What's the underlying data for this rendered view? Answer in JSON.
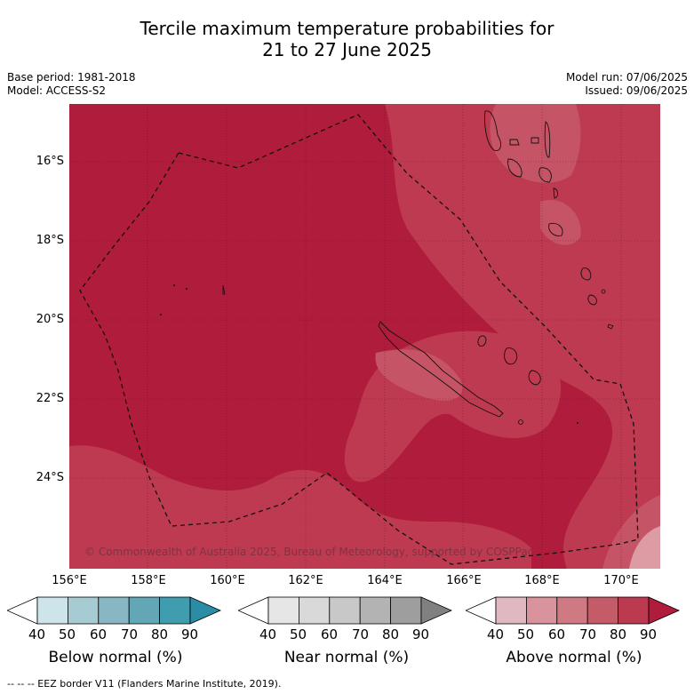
{
  "title_line1": "Tercile maximum temperature probabilities for",
  "title_line2": "21 to 27 June 2025",
  "meta_left": [
    "Base period: 1981-2018",
    "Model: ACCESS-S2"
  ],
  "meta_right": [
    "Model run: 07/06/2025",
    "Issued: 09/06/2025"
  ],
  "lat_labels": [
    "16°S",
    "18°S",
    "20°S",
    "22°S",
    "24°S"
  ],
  "lon_labels": [
    "156°E",
    "158°E",
    "160°E",
    "162°E",
    "164°E",
    "166°E",
    "168°E",
    "170°E"
  ],
  "copyright": "© Commonwealth of Australia 2025, Bureau of Meteorology, supported by COSPPac",
  "colorbars": [
    {
      "title": "Below normal (%)",
      "ticks": [
        "40",
        "50",
        "60",
        "70",
        "80",
        "90"
      ],
      "colors": [
        "#ffffff",
        "#cce4ea",
        "#a6cbd3",
        "#86b7c3",
        "#63a6b6",
        "#3f9daf",
        "#2a8da5"
      ]
    },
    {
      "title": "Near normal (%)",
      "ticks": [
        "40",
        "50",
        "60",
        "70",
        "80",
        "90"
      ],
      "colors": [
        "#ffffff",
        "#e6e6e6",
        "#d9d9d9",
        "#c8c8c8",
        "#b3b3b3",
        "#9e9e9e",
        "#808080"
      ]
    },
    {
      "title": "Above normal (%)",
      "ticks": [
        "40",
        "50",
        "60",
        "70",
        "80",
        "90"
      ],
      "colors": [
        "#ffffff",
        "#e0b8c0",
        "#d8939d",
        "#cf7a82",
        "#c45b68",
        "#bb3a50",
        "#b01c3c"
      ]
    }
  ],
  "footer": "--  --  -- EEZ border V11 (Flanders Marine Institute, 2019).",
  "colors": {
    "above_80": "#b01c3c",
    "above_70": "#bd3a50",
    "above_60": "#c55566",
    "above_50": "#dd9ca4"
  }
}
